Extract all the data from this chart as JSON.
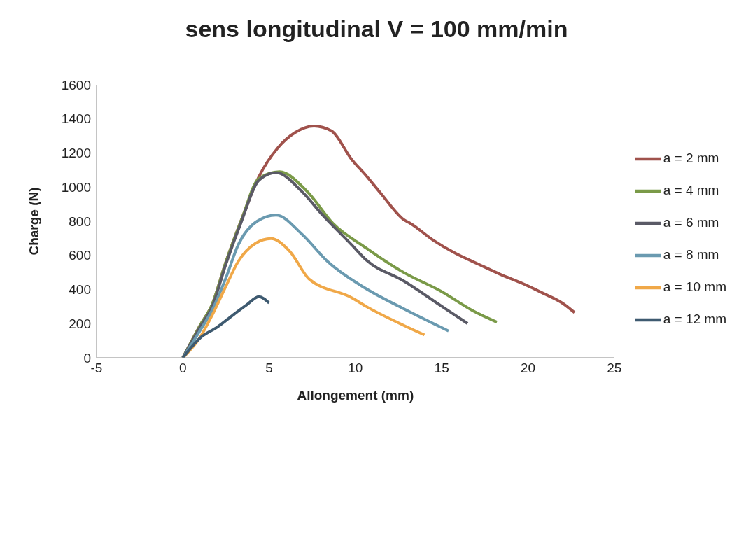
{
  "chart_data": {
    "type": "line",
    "title": "sens longitudinal V = 100 mm/min",
    "xlabel": "Allongement (mm)",
    "ylabel": "Charge (N)",
    "xlim": [
      -5,
      25
    ],
    "xticks": [
      -5,
      0,
      5,
      10,
      15,
      20,
      25
    ],
    "ylim": [
      0,
      1600
    ],
    "yticks": [
      0,
      200,
      400,
      600,
      800,
      1000,
      1200,
      1400,
      1600
    ],
    "grid": false,
    "legend": "right",
    "marker": "none",
    "series": [
      {
        "name": "a = 2 mm",
        "color": "#a0524c",
        "x": [
          0,
          1.0,
          1.7,
          2.5,
          3.4,
          4.4,
          5.5,
          6.5,
          7.6,
          8.6,
          9.8,
          10.6,
          11.5,
          12.8,
          13.2,
          14.5,
          15.8,
          17.1,
          18.4,
          19.7,
          20.9,
          22.0,
          22.7
        ],
        "values": [
          0,
          190,
          313,
          563,
          810,
          1060,
          1230,
          1320,
          1358,
          1330,
          1160,
          1070,
          960,
          810,
          787,
          690,
          612,
          550,
          489,
          435,
          377,
          320,
          265
        ]
      },
      {
        "name": "a = 4 mm",
        "color": "#7a9a48",
        "x": [
          0,
          1.0,
          1.7,
          2.5,
          3.4,
          4.4,
          5.6,
          7.2,
          8.7,
          10.6,
          12.8,
          15.0,
          16.8,
          18.2
        ],
        "values": [
          0,
          190,
          313,
          563,
          810,
          1050,
          1090,
          975,
          787,
          645,
          500,
          388,
          276,
          209
        ]
      },
      {
        "name": "a = 6 mm",
        "color": "#5a5a66",
        "x": [
          0,
          1.0,
          1.7,
          2.5,
          3.4,
          4.4,
          5.4,
          6.9,
          8.1,
          9.8,
          10.6,
          12.8,
          15.0,
          16.5
        ],
        "values": [
          0,
          180,
          300,
          550,
          800,
          1040,
          1085,
          974,
          836,
          660,
          575,
          450,
          302,
          201
        ]
      },
      {
        "name": "a = 8 mm",
        "color": "#6a9ab0",
        "x": [
          0,
          1.0,
          1.7,
          2.5,
          3.2,
          4.3,
          5.4,
          6.9,
          8.4,
          10.6,
          12.8,
          15.4
        ],
        "values": [
          0,
          160,
          280,
          470,
          660,
          800,
          836,
          724,
          563,
          406,
          287,
          157
        ]
      },
      {
        "name": "a = 10 mm",
        "color": "#f0a848",
        "x": [
          0,
          1.0,
          1.7,
          2.5,
          3.2,
          4.2,
          5.1,
          6.2,
          7.3,
          9.8,
          10.6,
          12.8,
          14.0
        ],
        "values": [
          0,
          120,
          250,
          420,
          563,
          670,
          698,
          623,
          463,
          351,
          302,
          190,
          134
        ]
      },
      {
        "name": "a = 12 mm",
        "color": "#3e5a70",
        "x": [
          0,
          1.0,
          2.0,
          2.9,
          3.7,
          4.4,
          5.0
        ],
        "values": [
          0,
          116,
          180,
          250,
          310,
          358,
          321
        ]
      }
    ]
  }
}
